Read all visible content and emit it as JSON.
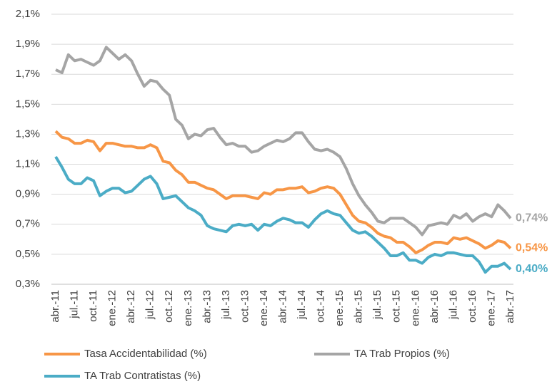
{
  "chart_data": {
    "type": "line",
    "categories": [
      "abr.-11",
      null,
      null,
      "jul.-11",
      null,
      null,
      "oct.-11",
      null,
      null,
      "ene.-12",
      null,
      null,
      "abr.-12",
      null,
      null,
      "jul.-12",
      null,
      null,
      "oct.-12",
      null,
      null,
      "ene.-13",
      null,
      null,
      "abr.-13",
      null,
      null,
      "jul.-13",
      null,
      null,
      "oct.-13",
      null,
      null,
      "ene.-14",
      null,
      null,
      "abr.-14",
      null,
      null,
      "jul.-14",
      null,
      null,
      "oct.-14",
      null,
      null,
      "ene.-15",
      null,
      null,
      "abr.-15",
      null,
      null,
      "jul.-15",
      null,
      null,
      "oct.-15",
      null,
      null,
      "ene.-16",
      null,
      null,
      "abr.-16",
      null,
      null,
      "jul.-16",
      null,
      null,
      "oct.-16",
      null,
      null,
      "ene.-17",
      null,
      null,
      "abr.-17"
    ],
    "series": [
      {
        "name": "Tasa Accidentabilidad (%)",
        "color": "#f79646",
        "values": [
          1.32,
          1.28,
          1.27,
          1.24,
          1.24,
          1.26,
          1.25,
          1.19,
          1.24,
          1.24,
          1.23,
          1.22,
          1.22,
          1.21,
          1.21,
          1.23,
          1.21,
          1.12,
          1.11,
          1.06,
          1.03,
          0.98,
          0.98,
          0.96,
          0.94,
          0.93,
          0.9,
          0.87,
          0.89,
          0.89,
          0.89,
          0.88,
          0.87,
          0.91,
          0.9,
          0.93,
          0.93,
          0.94,
          0.94,
          0.95,
          0.91,
          0.92,
          0.94,
          0.95,
          0.94,
          0.9,
          0.83,
          0.76,
          0.72,
          0.71,
          0.68,
          0.64,
          0.62,
          0.61,
          0.58,
          0.58,
          0.55,
          0.51,
          0.53,
          0.56,
          0.58,
          0.58,
          0.57,
          0.61,
          0.6,
          0.61,
          0.59,
          0.57,
          0.54,
          0.56,
          0.59,
          0.58,
          0.54
        ],
        "value_labels": [
          null,
          null,
          null,
          null,
          null,
          null,
          null,
          null,
          null,
          null,
          null,
          null,
          null,
          null,
          null,
          null,
          null,
          null,
          null,
          null,
          null,
          null,
          null,
          null,
          null,
          null,
          null,
          null,
          null,
          null,
          null,
          null,
          null,
          null,
          null,
          null,
          null,
          null,
          null,
          null,
          null,
          null,
          null,
          null,
          null,
          null,
          null,
          null,
          null,
          null,
          null,
          null,
          null,
          null,
          null,
          null,
          null,
          null,
          null,
          null,
          null,
          null,
          null,
          null,
          null,
          null,
          null,
          null,
          null,
          null,
          null,
          null,
          "0,54%"
        ]
      },
      {
        "name": "TA Trab Propios (%)",
        "color": "#a5a5a5",
        "values": [
          1.73,
          1.71,
          1.83,
          1.79,
          1.8,
          1.78,
          1.76,
          1.79,
          1.88,
          1.84,
          1.8,
          1.83,
          1.79,
          1.7,
          1.62,
          1.66,
          1.65,
          1.6,
          1.56,
          1.4,
          1.36,
          1.27,
          1.3,
          1.29,
          1.33,
          1.34,
          1.28,
          1.23,
          1.24,
          1.22,
          1.22,
          1.18,
          1.19,
          1.22,
          1.24,
          1.26,
          1.25,
          1.27,
          1.31,
          1.31,
          1.25,
          1.2,
          1.19,
          1.2,
          1.18,
          1.15,
          1.07,
          0.97,
          0.89,
          0.83,
          0.78,
          0.72,
          0.71,
          0.74,
          0.74,
          0.74,
          0.71,
          0.68,
          0.63,
          0.69,
          0.7,
          0.71,
          0.7,
          0.76,
          0.74,
          0.77,
          0.72,
          0.75,
          0.77,
          0.75,
          0.83,
          0.79,
          0.74
        ],
        "value_labels": [
          null,
          null,
          null,
          null,
          null,
          null,
          null,
          null,
          null,
          null,
          null,
          null,
          null,
          null,
          null,
          null,
          null,
          null,
          null,
          null,
          null,
          null,
          null,
          null,
          null,
          null,
          null,
          null,
          null,
          null,
          null,
          null,
          null,
          null,
          null,
          null,
          null,
          null,
          null,
          null,
          null,
          null,
          null,
          null,
          null,
          null,
          null,
          null,
          null,
          null,
          null,
          null,
          null,
          null,
          null,
          null,
          null,
          null,
          null,
          null,
          null,
          null,
          null,
          null,
          null,
          null,
          null,
          null,
          null,
          null,
          null,
          null,
          "0,74%"
        ]
      },
      {
        "name": "TA Trab Contratistas (%)",
        "color": "#4bacc6",
        "values": [
          1.15,
          1.08,
          1.0,
          0.97,
          0.97,
          1.01,
          0.99,
          0.89,
          0.92,
          0.94,
          0.94,
          0.91,
          0.92,
          0.96,
          1.0,
          1.02,
          0.97,
          0.87,
          0.88,
          0.89,
          0.85,
          0.81,
          0.79,
          0.76,
          0.69,
          0.67,
          0.66,
          0.65,
          0.69,
          0.7,
          0.69,
          0.7,
          0.66,
          0.7,
          0.69,
          0.72,
          0.74,
          0.73,
          0.71,
          0.71,
          0.68,
          0.73,
          0.77,
          0.79,
          0.77,
          0.76,
          0.71,
          0.66,
          0.64,
          0.65,
          0.62,
          0.58,
          0.54,
          0.49,
          0.49,
          0.51,
          0.46,
          0.46,
          0.44,
          0.48,
          0.5,
          0.49,
          0.51,
          0.51,
          0.5,
          0.49,
          0.49,
          0.45,
          0.38,
          0.42,
          0.42,
          0.44,
          0.4
        ],
        "value_labels": [
          null,
          null,
          null,
          null,
          null,
          null,
          null,
          null,
          null,
          null,
          null,
          null,
          null,
          null,
          null,
          null,
          null,
          null,
          null,
          null,
          null,
          null,
          null,
          null,
          null,
          null,
          null,
          null,
          null,
          null,
          null,
          null,
          null,
          null,
          null,
          null,
          null,
          null,
          null,
          null,
          null,
          null,
          null,
          null,
          null,
          null,
          null,
          null,
          null,
          null,
          null,
          null,
          null,
          null,
          null,
          null,
          null,
          null,
          null,
          null,
          null,
          null,
          null,
          null,
          null,
          null,
          null,
          null,
          null,
          null,
          null,
          null,
          "0,40%"
        ]
      }
    ],
    "ylim": [
      0.3,
      2.1
    ],
    "yticks": [
      {
        "value": 0.3,
        "label": "0,3%"
      },
      {
        "value": 0.5,
        "label": "0,5%"
      },
      {
        "value": 0.7,
        "label": "0,7%"
      },
      {
        "value": 0.9,
        "label": "0,9%"
      },
      {
        "value": 1.1,
        "label": "1,1%"
      },
      {
        "value": 1.3,
        "label": "1,3%"
      },
      {
        "value": 1.5,
        "label": "1,5%"
      },
      {
        "value": 1.7,
        "label": "1,7%"
      },
      {
        "value": 1.9,
        "label": "1,9%"
      },
      {
        "value": 2.1,
        "label": "2,1%"
      }
    ],
    "grid": true
  }
}
